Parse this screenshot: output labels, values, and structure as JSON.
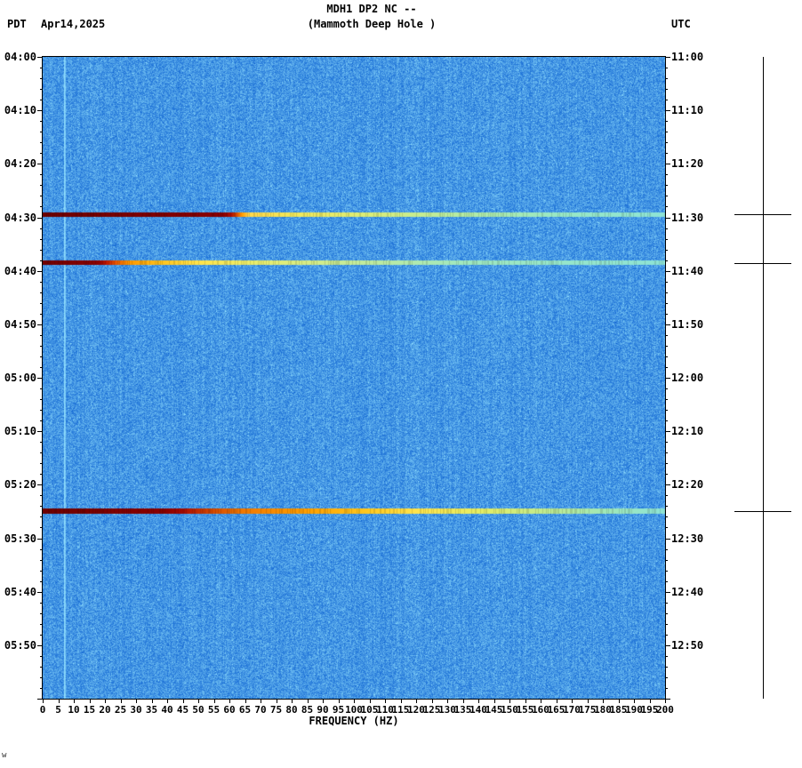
{
  "header": {
    "timezone_left": "PDT",
    "date": "Apr14,2025",
    "title_line1": "MDH1 DP2 NC --",
    "title_line2": "(Mammoth Deep Hole )",
    "timezone_right": "UTC"
  },
  "chart_data": {
    "type": "heatmap",
    "title": "MDH1 DP2 NC -- (Mammoth Deep Hole )",
    "station": "MDH1 DP2 NC",
    "station_description": "Mammoth Deep Hole",
    "xlabel": "FREQUENCY (HZ)",
    "x_range": [
      0,
      200
    ],
    "x_tick_step": 5,
    "x_tick_labels": [
      "0",
      "5",
      "10",
      "15",
      "20",
      "25",
      "30",
      "35",
      "40",
      "45",
      "50",
      "55",
      "60",
      "65",
      "70",
      "75",
      "80",
      "85",
      "90",
      "95",
      "100",
      "105",
      "110",
      "115",
      "120",
      "125",
      "130",
      "135",
      "140",
      "145",
      "150",
      "155",
      "160",
      "165",
      "170",
      "175",
      "180",
      "185",
      "190",
      "195",
      "200"
    ],
    "y_left_axis": "PDT",
    "y_right_axis": "UTC",
    "y_left_ticks": [
      "04:00",
      "04:10",
      "04:20",
      "04:30",
      "04:40",
      "04:50",
      "05:00",
      "05:10",
      "05:20",
      "05:30",
      "05:40",
      "05:50"
    ],
    "y_right_ticks": [
      "11:00",
      "11:10",
      "11:20",
      "11:30",
      "11:40",
      "11:50",
      "12:00",
      "12:10",
      "12:20",
      "12:30",
      "12:40",
      "12:50"
    ],
    "time_span_minutes": 120,
    "background_style": "broadband blue noise spectrogram",
    "calibration_line_hz": 7,
    "events": [
      {
        "pdt_time": "04:29",
        "utc_time": "11:29",
        "minutes_from_start": 29.5,
        "strong_to_hz": 62,
        "thickness_px": 5,
        "stops": [
          [
            0,
            "#6e0000"
          ],
          [
            0.29,
            "#8a0000"
          ],
          [
            0.303,
            "#b01000"
          ],
          [
            0.312,
            "#d84a00"
          ],
          [
            0.32,
            "#ff9900"
          ],
          [
            0.332,
            "#ffd94d"
          ],
          [
            0.4,
            "#f2e85a"
          ],
          [
            0.52,
            "#dcee78"
          ],
          [
            0.66,
            "#b8eca0"
          ],
          [
            0.82,
            "#9ae8c4"
          ],
          [
            1,
            "#8ee4d6"
          ]
        ]
      },
      {
        "pdt_time": "04:38",
        "utc_time": "11:38",
        "minutes_from_start": 38.5,
        "strong_to_hz": 20,
        "thickness_px": 5,
        "stops": [
          [
            0,
            "#700000"
          ],
          [
            0.09,
            "#8a0000"
          ],
          [
            0.103,
            "#c01800"
          ],
          [
            0.118,
            "#e85600"
          ],
          [
            0.14,
            "#ff9900"
          ],
          [
            0.19,
            "#ffc41e"
          ],
          [
            0.25,
            "#ffe44d"
          ],
          [
            0.34,
            "#eaee6e"
          ],
          [
            0.48,
            "#c8ec96"
          ],
          [
            0.68,
            "#a0e8c0"
          ],
          [
            1,
            "#8ee4d6"
          ]
        ]
      },
      {
        "pdt_time": "05:25",
        "utc_time": "12:25",
        "minutes_from_start": 85.0,
        "strong_to_hz": 45,
        "thickness_px": 6,
        "stops": [
          [
            0,
            "#6e0000"
          ],
          [
            0.2,
            "#8a0000"
          ],
          [
            0.225,
            "#aa0a00"
          ],
          [
            0.26,
            "#cc3c00"
          ],
          [
            0.32,
            "#f07800"
          ],
          [
            0.42,
            "#ff9e00"
          ],
          [
            0.52,
            "#ffc81e"
          ],
          [
            0.6,
            "#ffe44d"
          ],
          [
            0.7,
            "#e6ee64"
          ],
          [
            0.8,
            "#c4ec8c"
          ],
          [
            0.9,
            "#a2e8b6"
          ],
          [
            1,
            "#8ee4d6"
          ]
        ]
      }
    ],
    "colors": {
      "background": "#ffffff",
      "noise_low": "#0055cd",
      "noise_high": "#96e4ff",
      "event_low_freq": "#8a0000",
      "event_mid_freq": "#ffe44d",
      "event_high_freq": "#8ee4d6",
      "axis": "#000000"
    },
    "legend": "none",
    "grid": false
  },
  "footer": {
    "xlabel": "FREQUENCY (HZ)",
    "watermark": "w"
  }
}
